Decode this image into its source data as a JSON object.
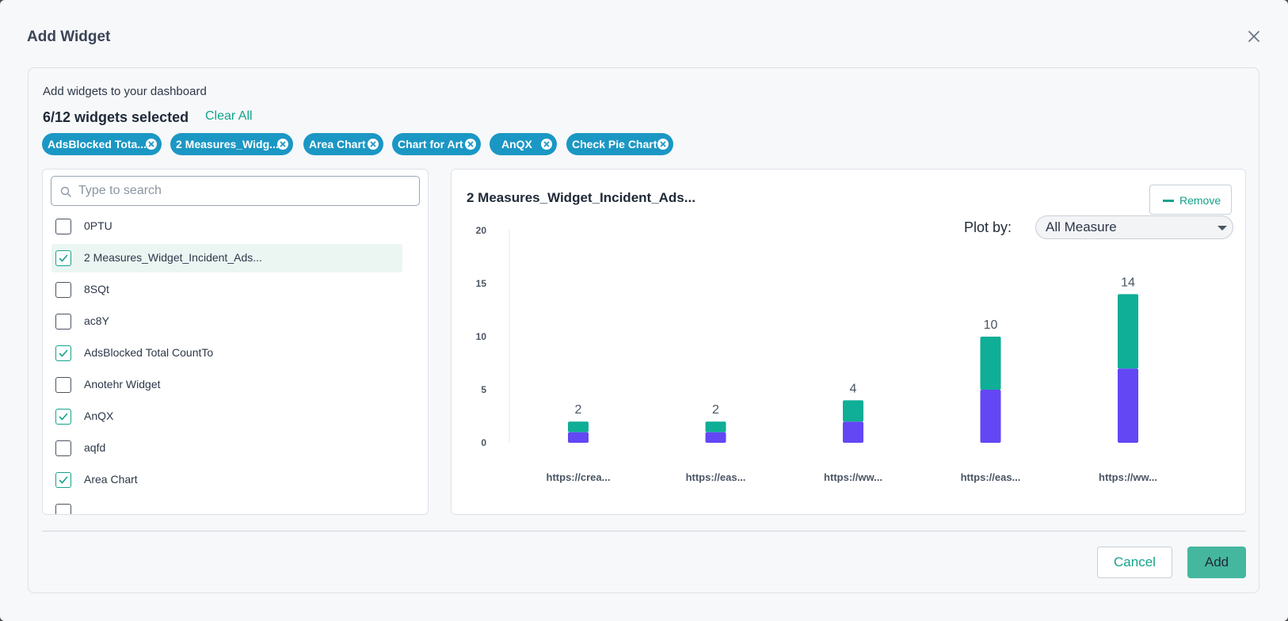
{
  "dialog": {
    "title": "Add Widget",
    "intro": "Add widgets to your dashboard",
    "count_label": "6/12 widgets selected",
    "clear_all": "Clear All"
  },
  "chips": [
    {
      "label": "AdsBlocked Tota..."
    },
    {
      "label": "2 Measures_Widg..."
    },
    {
      "label": "Area Chart"
    },
    {
      "label": "Chart for Art"
    },
    {
      "label": "AnQX"
    },
    {
      "label": "Check Pie Chart"
    }
  ],
  "search": {
    "placeholder": "Type to search",
    "value": ""
  },
  "widget_list": [
    {
      "label": "0PTU",
      "checked": false
    },
    {
      "label": "2 Measures_Widget_Incident_Ads...",
      "checked": true
    },
    {
      "label": "8SQt",
      "checked": false
    },
    {
      "label": "ac8Y",
      "checked": false
    },
    {
      "label": "AdsBlocked Total CountTo",
      "checked": true
    },
    {
      "label": "Anotehr Widget",
      "checked": false
    },
    {
      "label": "AnQX",
      "checked": true
    },
    {
      "label": "aqfd",
      "checked": false
    },
    {
      "label": "Area Chart",
      "checked": true
    }
  ],
  "preview": {
    "title": "2 Measures_Widget_Incident_Ads...",
    "remove_label": "Remove",
    "plot_by_label": "Plot by:",
    "plot_by_value": "All Measure"
  },
  "chart_data": {
    "type": "bar",
    "stacked": true,
    "categories": [
      "https://crea...",
      "https://eas...",
      "https://ww...",
      "https://eas...",
      "https://ww..."
    ],
    "series": [
      {
        "values": [
          1,
          1,
          2,
          5,
          7
        ],
        "color": "#6347f5"
      },
      {
        "values": [
          1,
          1,
          2,
          5,
          7
        ],
        "color": "#0fae96"
      }
    ],
    "totals": [
      2,
      2,
      4,
      10,
      14
    ],
    "yticks": [
      0,
      5,
      10,
      15,
      20
    ],
    "ylim": [
      0,
      20
    ],
    "grid": false,
    "legend": "none"
  },
  "footer": {
    "cancel_label": "Cancel",
    "add_label": "Add"
  },
  "colors": {
    "accent": "#14a38b",
    "chip": "#1b97c4",
    "add_button": "#45b79f"
  }
}
